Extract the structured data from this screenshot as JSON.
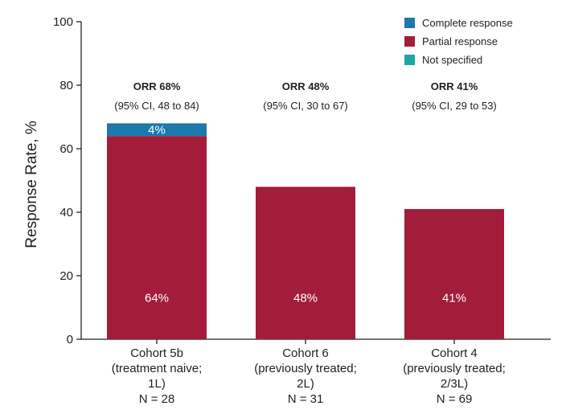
{
  "chart_data": {
    "type": "bar",
    "stacked": true,
    "ylabel": "Response Rate, %",
    "ylim": [
      0,
      100
    ],
    "yticks": [
      0,
      20,
      40,
      60,
      80,
      100
    ],
    "grid": false,
    "legend_position": "top-right",
    "categories": [
      [
        "Cohort 5b",
        "(treatment naive;",
        "1L)",
        "N = 28"
      ],
      [
        "Cohort 6",
        "(previously treated;",
        "2L)",
        "N = 31"
      ],
      [
        "Cohort 4",
        "(previously treated;",
        "2/3L)",
        "N = 69"
      ]
    ],
    "series": [
      {
        "name": "Complete response",
        "color": "#1d78ac",
        "values": [
          4,
          0,
          0
        ],
        "labels": [
          "4%",
          "",
          ""
        ]
      },
      {
        "name": "Partial response",
        "color": "#a31c3a",
        "values": [
          64,
          48,
          41
        ],
        "labels": [
          "64%",
          "48%",
          "41%"
        ]
      },
      {
        "name": "Not specified",
        "color": "#1ea6a2",
        "values": [
          0,
          0,
          0
        ],
        "labels": [
          "",
          "",
          ""
        ]
      }
    ],
    "annotations": [
      {
        "title": "ORR 68%",
        "ci": "(95% CI, 48 to 84)"
      },
      {
        "title": "ORR 48%",
        "ci": "(95% CI, 30 to 67)"
      },
      {
        "title": "ORR  41%",
        "ci": "(95% CI, 29 to 53)"
      }
    ]
  }
}
